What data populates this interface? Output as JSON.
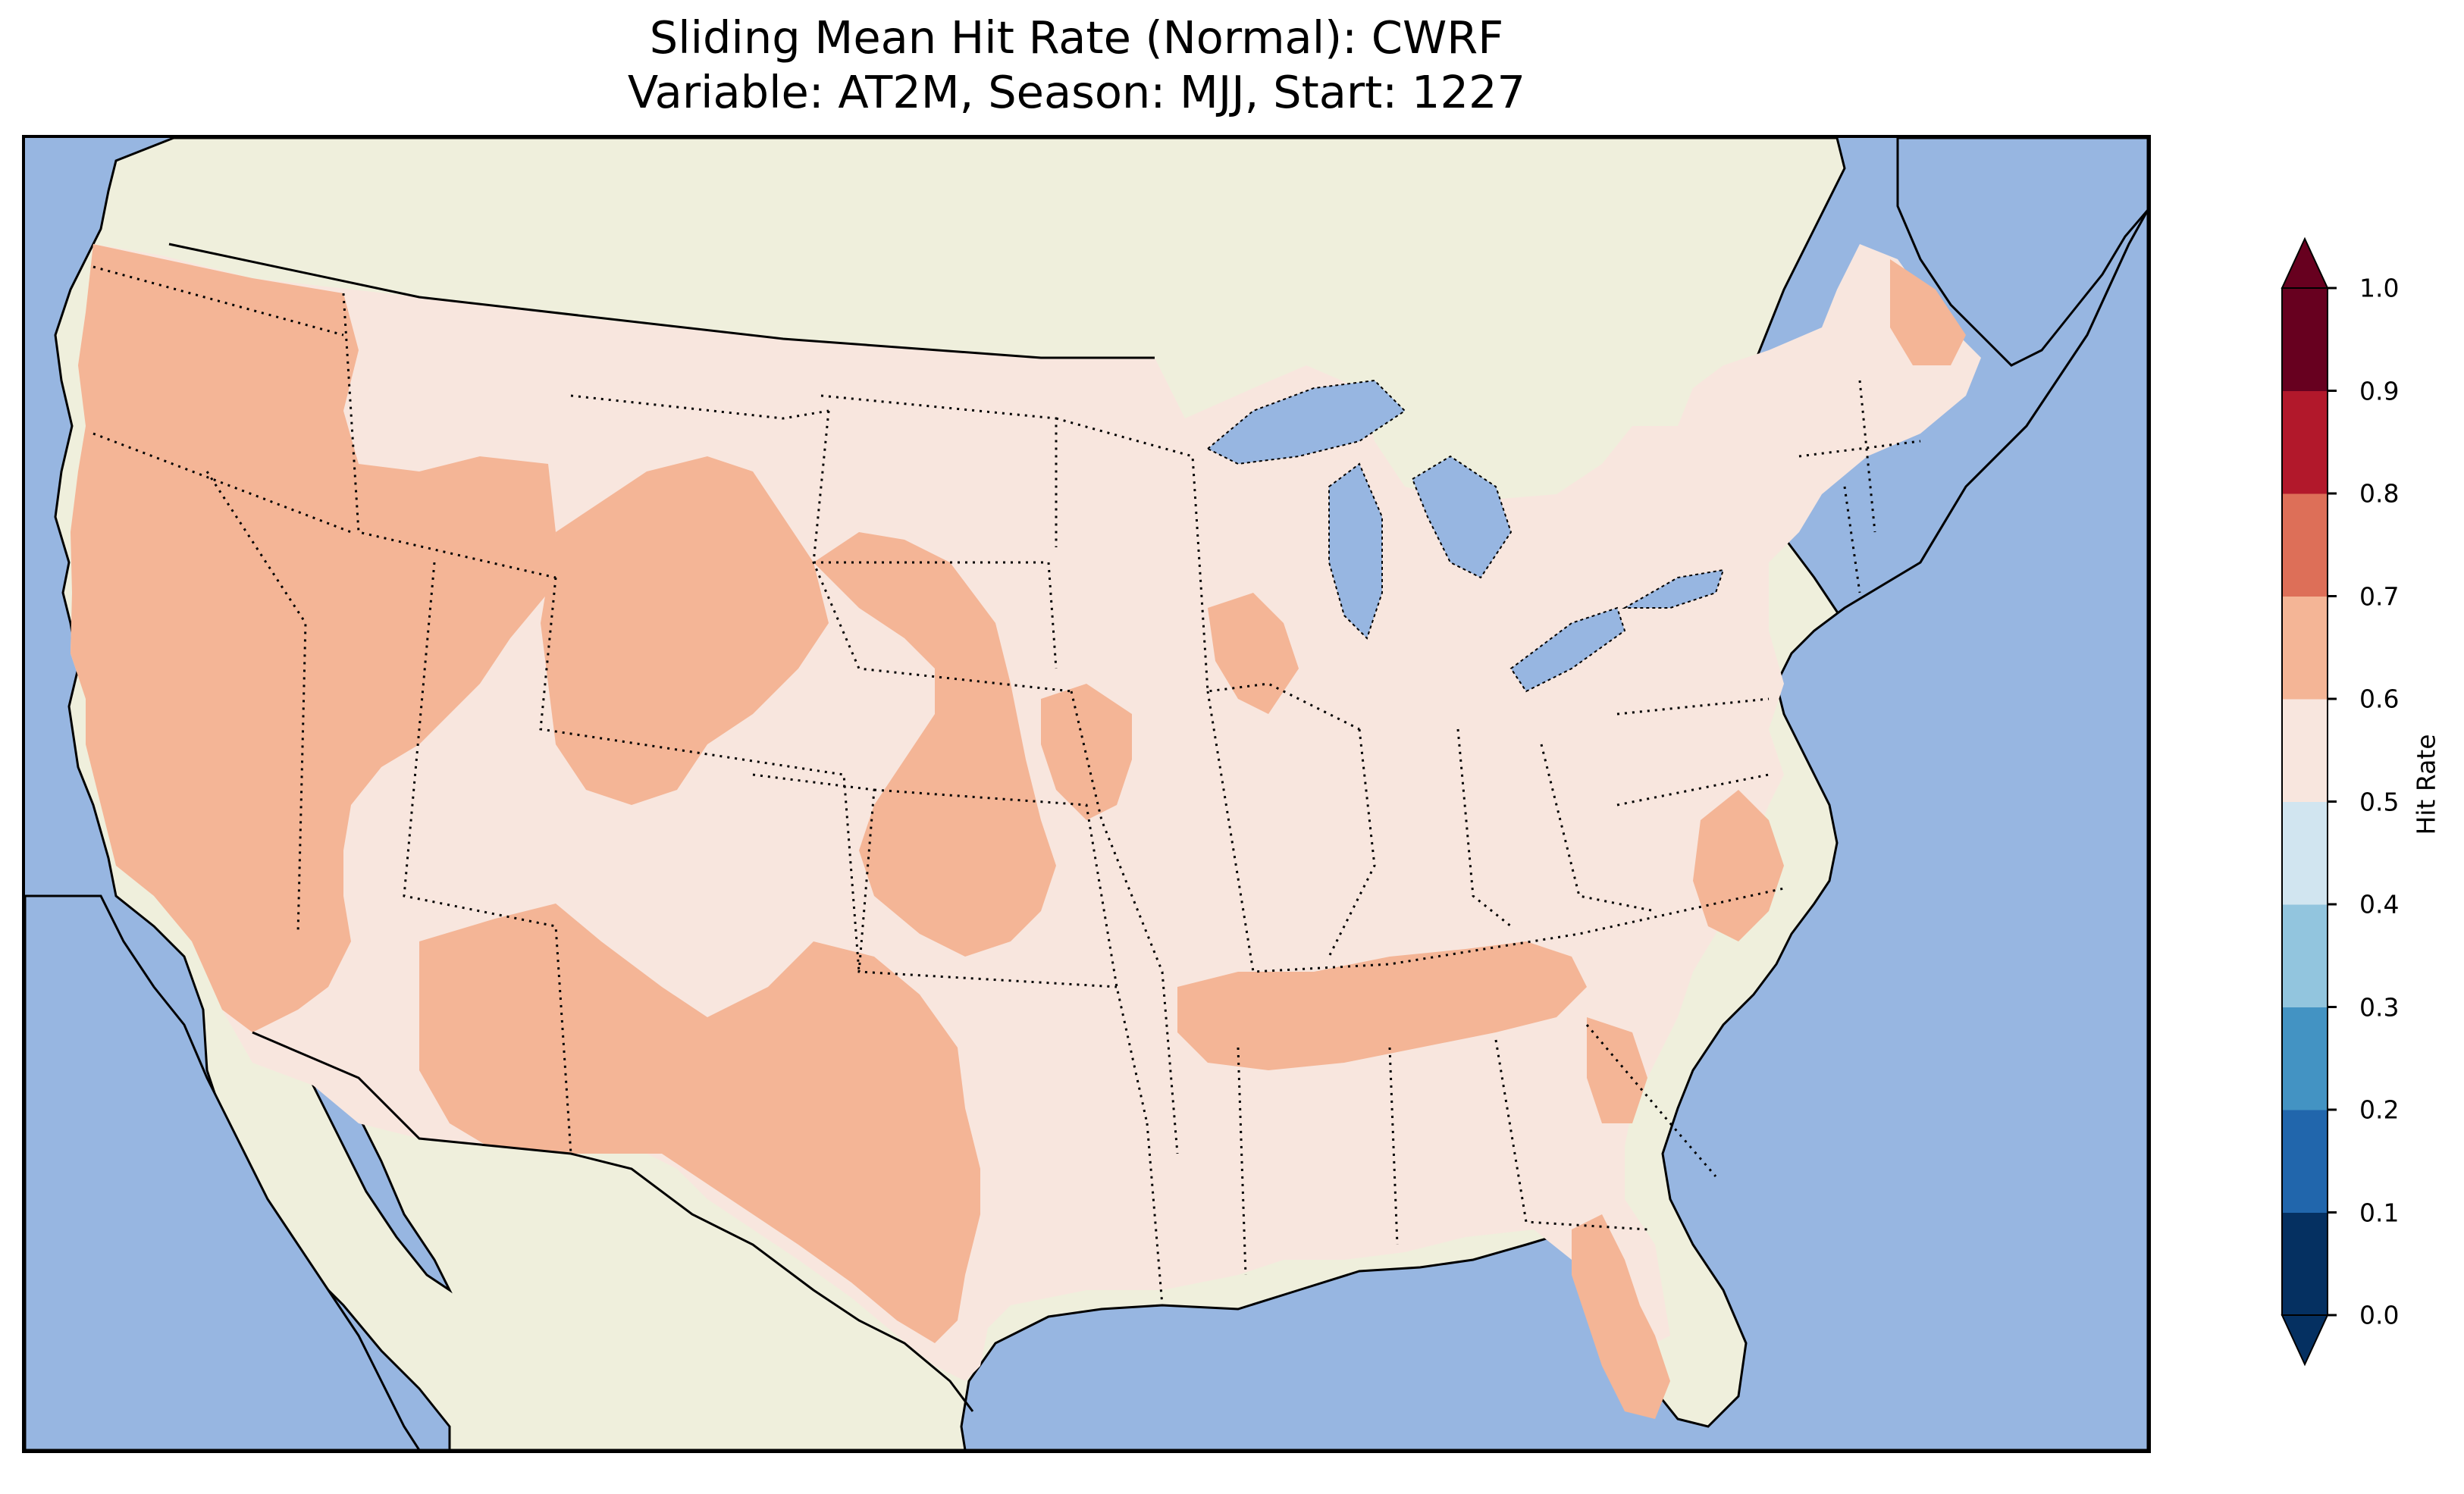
{
  "title": {
    "line1": "Sliding Mean Hit Rate (Normal): CWRF",
    "line2": "Variable: AT2M, Season: MJJ, Start: 1227"
  },
  "colors": {
    "ocean": "#97b6e1",
    "land": "#efefdc",
    "lakes": "#97b6e1",
    "state_border": "#000000",
    "coastline": "#000000"
  },
  "map": {
    "projection": "Lambert conformal (CONUS)",
    "features": [
      "coastline",
      "ocean",
      "land",
      "lakes",
      "country-borders",
      "state-borders"
    ],
    "field_classes": [
      {
        "range": "0.5-0.6",
        "color": "#f8e6de",
        "description": "most of central and eastern US"
      },
      {
        "range": "0.6-0.7",
        "color": "#f4b596",
        "description": "West Coast, Great Basin, Rockies, Texas, Tennessee Valley, Florida, Carolinas coast"
      }
    ]
  },
  "colorbar": {
    "label": "Hit Rate",
    "ticks": [
      "0.0",
      "0.1",
      "0.2",
      "0.3",
      "0.4",
      "0.5",
      "0.6",
      "0.7",
      "0.8",
      "0.9",
      "1.0"
    ],
    "extend": "both",
    "bins": [
      {
        "from": 0.0,
        "to": 0.1,
        "color": "#053061"
      },
      {
        "from": 0.1,
        "to": 0.2,
        "color": "#2166ac"
      },
      {
        "from": 0.2,
        "to": 0.3,
        "color": "#4393c3"
      },
      {
        "from": 0.3,
        "to": 0.4,
        "color": "#92c5de"
      },
      {
        "from": 0.4,
        "to": 0.5,
        "color": "#d1e5f0"
      },
      {
        "from": 0.5,
        "to": 0.6,
        "color": "#f8e6de"
      },
      {
        "from": 0.6,
        "to": 0.7,
        "color": "#f4b596"
      },
      {
        "from": 0.7,
        "to": 0.8,
        "color": "#dd6f58"
      },
      {
        "from": 0.8,
        "to": 0.9,
        "color": "#b2182b"
      },
      {
        "from": 0.9,
        "to": 1.0,
        "color": "#67001f"
      }
    ],
    "under_color": "#053061",
    "over_color": "#67001f"
  }
}
